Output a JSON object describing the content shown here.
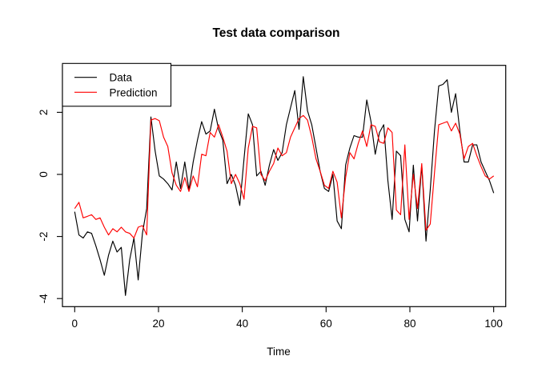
{
  "title": "Test data comparison",
  "xlabel": "Time",
  "colors": {
    "data_series": "#000000",
    "prediction_series": "#FF0000",
    "axis": "#000000",
    "background": "#FFFFFF"
  },
  "chart_data": {
    "type": "line",
    "title": "Test data comparison",
    "xlabel": "Time",
    "ylabel": "",
    "grid": false,
    "legend_position": "top-left",
    "xlim": [
      -3,
      104
    ],
    "ylim": [
      -4.3,
      3.5
    ],
    "x_ticks": [
      0,
      20,
      40,
      60,
      80,
      100
    ],
    "y_ticks": [
      -4,
      -2,
      0,
      2
    ],
    "x": [
      1,
      2,
      3,
      4,
      5,
      6,
      7,
      8,
      9,
      10,
      11,
      12,
      13,
      14,
      15,
      16,
      17,
      18,
      19,
      20,
      21,
      22,
      23,
      24,
      25,
      26,
      27,
      28,
      29,
      30,
      31,
      32,
      33,
      34,
      35,
      36,
      37,
      38,
      39,
      40,
      41,
      42,
      43,
      44,
      45,
      46,
      47,
      48,
      49,
      50,
      51,
      52,
      53,
      54,
      55,
      56,
      57,
      58,
      59,
      60,
      61,
      62,
      63,
      64,
      65,
      66,
      67,
      68,
      69,
      70,
      71,
      72,
      73,
      74,
      75,
      76,
      77,
      78,
      79,
      80,
      81,
      82,
      83,
      84,
      85,
      86,
      87,
      88,
      89,
      90,
      91,
      92,
      93,
      94,
      95,
      96,
      97,
      98,
      99,
      100
    ],
    "series": [
      {
        "name": "Data",
        "color": "#000000",
        "values": [
          -1.2,
          -1.95,
          -2.05,
          -1.85,
          -1.9,
          -2.3,
          -2.75,
          -3.25,
          -2.6,
          -2.15,
          -2.5,
          -2.35,
          -3.9,
          -2.75,
          -2.05,
          -3.4,
          -1.9,
          -1.1,
          1.85,
          0.75,
          -0.05,
          -0.15,
          -0.3,
          -0.5,
          0.4,
          -0.45,
          0.4,
          -0.5,
          0.4,
          1.1,
          1.7,
          1.3,
          1.4,
          2.1,
          1.45,
          1.1,
          -0.3,
          0.0,
          -0.35,
          -1.0,
          0.5,
          1.95,
          1.6,
          -0.05,
          0.1,
          -0.35,
          0.3,
          0.8,
          0.45,
          0.7,
          1.6,
          2.15,
          2.7,
          1.45,
          3.15,
          2.05,
          1.6,
          0.85,
          0.1,
          -0.45,
          -0.55,
          0.0,
          -1.5,
          -1.75,
          0.3,
          0.85,
          1.25,
          1.2,
          1.2,
          2.4,
          1.7,
          0.65,
          1.35,
          1.6,
          -0.2,
          -1.45,
          0.75,
          0.6,
          -1.45,
          -1.85,
          0.3,
          -1.5,
          0.3,
          -2.15,
          -0.5,
          1.4,
          2.85,
          2.9,
          3.05,
          2.0,
          2.6,
          1.4,
          0.4,
          0.4,
          0.95,
          0.95,
          0.4,
          0.1,
          -0.2,
          -0.6
        ]
      },
      {
        "name": "Prediction",
        "color": "#FF0000",
        "values": [
          -1.1,
          -0.9,
          -1.4,
          -1.35,
          -1.3,
          -1.45,
          -1.4,
          -1.7,
          -1.95,
          -1.75,
          -1.85,
          -1.7,
          -1.85,
          -1.9,
          -2.05,
          -1.7,
          -1.65,
          -1.95,
          1.75,
          1.8,
          1.73,
          1.2,
          0.9,
          0.05,
          -0.35,
          -0.55,
          -0.1,
          -0.55,
          -0.05,
          -0.4,
          0.65,
          0.6,
          1.35,
          1.2,
          1.6,
          1.2,
          0.75,
          -0.3,
          0.0,
          -0.3,
          -0.8,
          0.85,
          1.55,
          1.5,
          0.0,
          -0.2,
          0.1,
          0.35,
          0.85,
          0.6,
          0.7,
          1.2,
          1.5,
          1.8,
          1.9,
          1.75,
          1.2,
          0.5,
          0.1,
          -0.35,
          -0.45,
          0.1,
          -0.25,
          -1.4,
          -0.1,
          0.7,
          0.5,
          1.0,
          1.4,
          0.9,
          1.6,
          1.55,
          1.05,
          1.0,
          1.5,
          1.35,
          -1.15,
          -1.3,
          0.95,
          -1.45,
          0.0,
          -1.1,
          0.35,
          -1.8,
          -1.6,
          0.05,
          1.6,
          1.65,
          1.7,
          1.4,
          1.65,
          1.3,
          0.5,
          0.9,
          1.0,
          0.6,
          0.25,
          -0.05,
          -0.15,
          -0.05
        ]
      }
    ]
  }
}
